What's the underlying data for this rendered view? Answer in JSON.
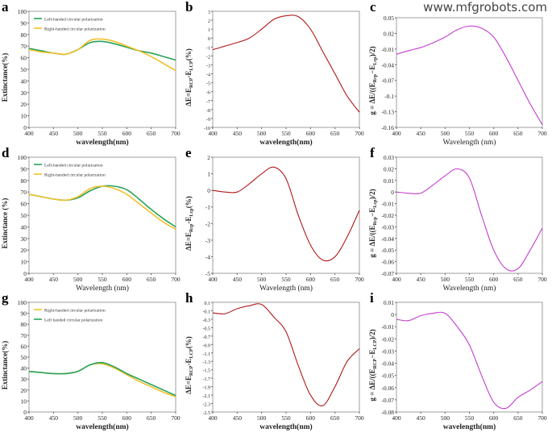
{
  "watermark": "www.mfgrobots.com",
  "chart_data": [
    {
      "panel": "a",
      "type": "line",
      "x": [
        400,
        425,
        450,
        475,
        500,
        525,
        550,
        575,
        600,
        625,
        650,
        675,
        700
      ],
      "xlim": [
        400,
        700
      ],
      "xticks": [
        400,
        450,
        500,
        550,
        600,
        650,
        700
      ],
      "ylim": [
        0,
        100
      ],
      "ystep": 10,
      "xlabel": "wavelength(nm)",
      "ylabel": [
        [
          "Extinctance(%)",
          false
        ]
      ],
      "legend": "top-left",
      "series": [
        {
          "name": "Left-handed circular polarization",
          "color": "#27a35a",
          "values": [
            68,
            66,
            64,
            63,
            67,
            73,
            74,
            72,
            69,
            66,
            64,
            61,
            58
          ]
        },
        {
          "name": "Right-handed circular polarization",
          "color": "#f2c02b",
          "values": [
            67,
            65,
            64,
            63,
            67,
            75,
            76,
            74,
            70,
            66,
            61,
            55,
            49
          ]
        }
      ]
    },
    {
      "panel": "b",
      "type": "line",
      "x": [
        400,
        425,
        450,
        475,
        500,
        525,
        550,
        575,
        600,
        625,
        650,
        675,
        700
      ],
      "xlim": [
        400,
        700
      ],
      "xticks": [
        400,
        450,
        500,
        550,
        600,
        650,
        700
      ],
      "ylim": [
        -10,
        3
      ],
      "ystep": 1,
      "xlabel": "wavelength(nm)",
      "ylabel": [
        [
          "ΔE=E",
          false
        ],
        [
          "RCP",
          true
        ],
        [
          "-E",
          false
        ],
        [
          "LCP",
          true
        ],
        [
          "(%)",
          false
        ]
      ],
      "series": [
        {
          "color": "#b01818",
          "values": [
            -1.3,
            -0.9,
            -0.5,
            0,
            1,
            2.1,
            2.5,
            2.4,
            1,
            -1.5,
            -4,
            -6.5,
            -8.3
          ]
        }
      ]
    },
    {
      "panel": "c",
      "type": "line",
      "x": [
        400,
        425,
        450,
        475,
        500,
        525,
        550,
        575,
        600,
        625,
        650,
        675,
        700
      ],
      "xlim": [
        400,
        700
      ],
      "xticks": [
        400,
        450,
        500,
        550,
        600,
        650,
        700
      ],
      "ylim": [
        -0.16,
        0.05
      ],
      "ystep": 0.03,
      "xlabel": "Wavelength (nm)",
      "ylabel": [
        [
          "g = ΔE/((E",
          false
        ],
        [
          "Rcp",
          true
        ],
        [
          "−E",
          false
        ],
        [
          "Lcp",
          true
        ],
        [
          ")/2)",
          false
        ]
      ],
      "series": [
        {
          "color": "#c43cd0",
          "values": [
            -0.02,
            -0.013,
            -0.007,
            0.002,
            0.013,
            0.027,
            0.034,
            0.03,
            0.013,
            -0.025,
            -0.07,
            -0.115,
            -0.155
          ]
        }
      ]
    },
    {
      "panel": "d",
      "type": "line",
      "x": [
        400,
        425,
        450,
        475,
        500,
        525,
        550,
        575,
        600,
        625,
        650,
        675,
        700
      ],
      "xlim": [
        400,
        700
      ],
      "xticks": [
        400,
        450,
        500,
        550,
        600,
        650,
        700
      ],
      "ylim": [
        0,
        100
      ],
      "ystep": 10,
      "xlabel": "Wavelength (nm)",
      "ylabel": [
        [
          "Extinctance (%)",
          false
        ]
      ],
      "legend": "top-left",
      "series": [
        {
          "name": "Left-handed circular polarization",
          "color": "#27a35a",
          "values": [
            68,
            66,
            64,
            63,
            65,
            71,
            75,
            75,
            72,
            64,
            55,
            47,
            40
          ]
        },
        {
          "name": "Right-handed circular polarization",
          "color": "#f2c02b",
          "values": [
            68,
            66,
            64,
            63,
            66,
            73,
            75,
            73,
            68,
            60,
            52,
            44,
            38
          ]
        }
      ]
    },
    {
      "panel": "e",
      "type": "line",
      "x": [
        400,
        425,
        450,
        475,
        500,
        525,
        550,
        575,
        600,
        625,
        650,
        675,
        700
      ],
      "xlim": [
        400,
        700
      ],
      "xticks": [
        400,
        450,
        500,
        550,
        600,
        650,
        700
      ],
      "ylim": [
        -5,
        2
      ],
      "ystep": 1,
      "xlabel": "Wavelength (nm)",
      "ylabel": [
        [
          "ΔE=E",
          false
        ],
        [
          "Rcp",
          true
        ],
        [
          "-E",
          false
        ],
        [
          "Lcp",
          true
        ],
        [
          "(%)",
          false
        ]
      ],
      "series": [
        {
          "color": "#b01818",
          "values": [
            0,
            -0.1,
            -0.1,
            0.4,
            1,
            1.4,
            0.7,
            -1.5,
            -3.3,
            -4.2,
            -4.0,
            -2.8,
            -1.2
          ]
        }
      ]
    },
    {
      "panel": "f",
      "type": "line",
      "x": [
        400,
        425,
        450,
        475,
        500,
        525,
        550,
        575,
        600,
        625,
        650,
        675,
        700
      ],
      "xlim": [
        400,
        700
      ],
      "xticks": [
        400,
        450,
        500,
        550,
        600,
        650,
        700
      ],
      "ylim": [
        -0.07,
        0.03
      ],
      "ystep": 0.01,
      "xlabel": "Wavelength (nm)",
      "ylabel": [
        [
          "g = ΔE/((E",
          false
        ],
        [
          "Rcp",
          true
        ],
        [
          "−E",
          false
        ],
        [
          "Lcp",
          true
        ],
        [
          ")/2)",
          false
        ]
      ],
      "series": [
        {
          "color": "#c43cd0",
          "values": [
            0,
            -0.001,
            -0.001,
            0.006,
            0.014,
            0.02,
            0.012,
            -0.02,
            -0.05,
            -0.066,
            -0.066,
            -0.05,
            -0.031
          ]
        }
      ]
    },
    {
      "panel": "g",
      "type": "line",
      "x": [
        400,
        425,
        450,
        475,
        500,
        525,
        550,
        575,
        600,
        625,
        650,
        675,
        700
      ],
      "xlim": [
        400,
        700
      ],
      "xticks": [
        400,
        450,
        500,
        550,
        600,
        650,
        700
      ],
      "ylim": [
        0,
        100
      ],
      "ystep": 10,
      "xlabel": "wavelength(nm)",
      "ylabel": [
        [
          "Extinctance(%)",
          false
        ]
      ],
      "legend": "top-left",
      "series": [
        {
          "name": "Right-handed circular polarization",
          "color": "#f2c02b",
          "values": [
            37,
            36,
            35,
            35,
            37,
            43,
            44,
            40,
            34,
            28,
            23,
            18,
            14
          ]
        },
        {
          "name": "Left handed circular polarization",
          "color": "#27a35a",
          "values": [
            37,
            36,
            35,
            35,
            37,
            43,
            45,
            41,
            35,
            30,
            25,
            20,
            15
          ]
        }
      ]
    },
    {
      "panel": "h",
      "type": "line",
      "x": [
        400,
        425,
        450,
        475,
        500,
        525,
        550,
        575,
        600,
        625,
        650,
        675,
        700
      ],
      "xlim": [
        400,
        700
      ],
      "xticks": [
        400,
        450,
        500,
        550,
        600,
        650,
        700
      ],
      "ylim": [
        -2.5,
        0.1
      ],
      "ystep": 0.2,
      "xlabel": "wavelength(nm)",
      "ylabel": [
        [
          "ΔE=E",
          false
        ],
        [
          "RCP",
          true
        ],
        [
          "-E",
          false
        ],
        [
          "LCP",
          true
        ],
        [
          "(%)",
          false
        ]
      ],
      "series": [
        {
          "color": "#b01818",
          "values": [
            -0.15,
            -0.17,
            -0.05,
            0.02,
            0.05,
            -0.25,
            -0.6,
            -1.4,
            -2.1,
            -2.35,
            -1.9,
            -1.3,
            -1.0
          ]
        }
      ]
    },
    {
      "panel": "i",
      "type": "line",
      "x": [
        400,
        425,
        450,
        475,
        500,
        525,
        550,
        575,
        600,
        625,
        650,
        675,
        700
      ],
      "xlim": [
        400,
        700
      ],
      "xticks": [
        400,
        450,
        500,
        550,
        600,
        650,
        700
      ],
      "ylim": [
        -0.08,
        0.01
      ],
      "ystep": 0.01,
      "xlabel": "wavelength(nm)",
      "ylabel": [
        [
          "g = ΔE/((E",
          false
        ],
        [
          "RCP",
          true
        ],
        [
          "−E",
          false
        ],
        [
          "LCP",
          true
        ],
        [
          ")/2)",
          false
        ]
      ],
      "series": [
        {
          "color": "#c43cd0",
          "values": [
            -0.004,
            -0.005,
            -0.001,
            0.001,
            0.001,
            -0.01,
            -0.025,
            -0.05,
            -0.072,
            -0.077,
            -0.068,
            -0.062,
            -0.055
          ]
        }
      ]
    }
  ]
}
